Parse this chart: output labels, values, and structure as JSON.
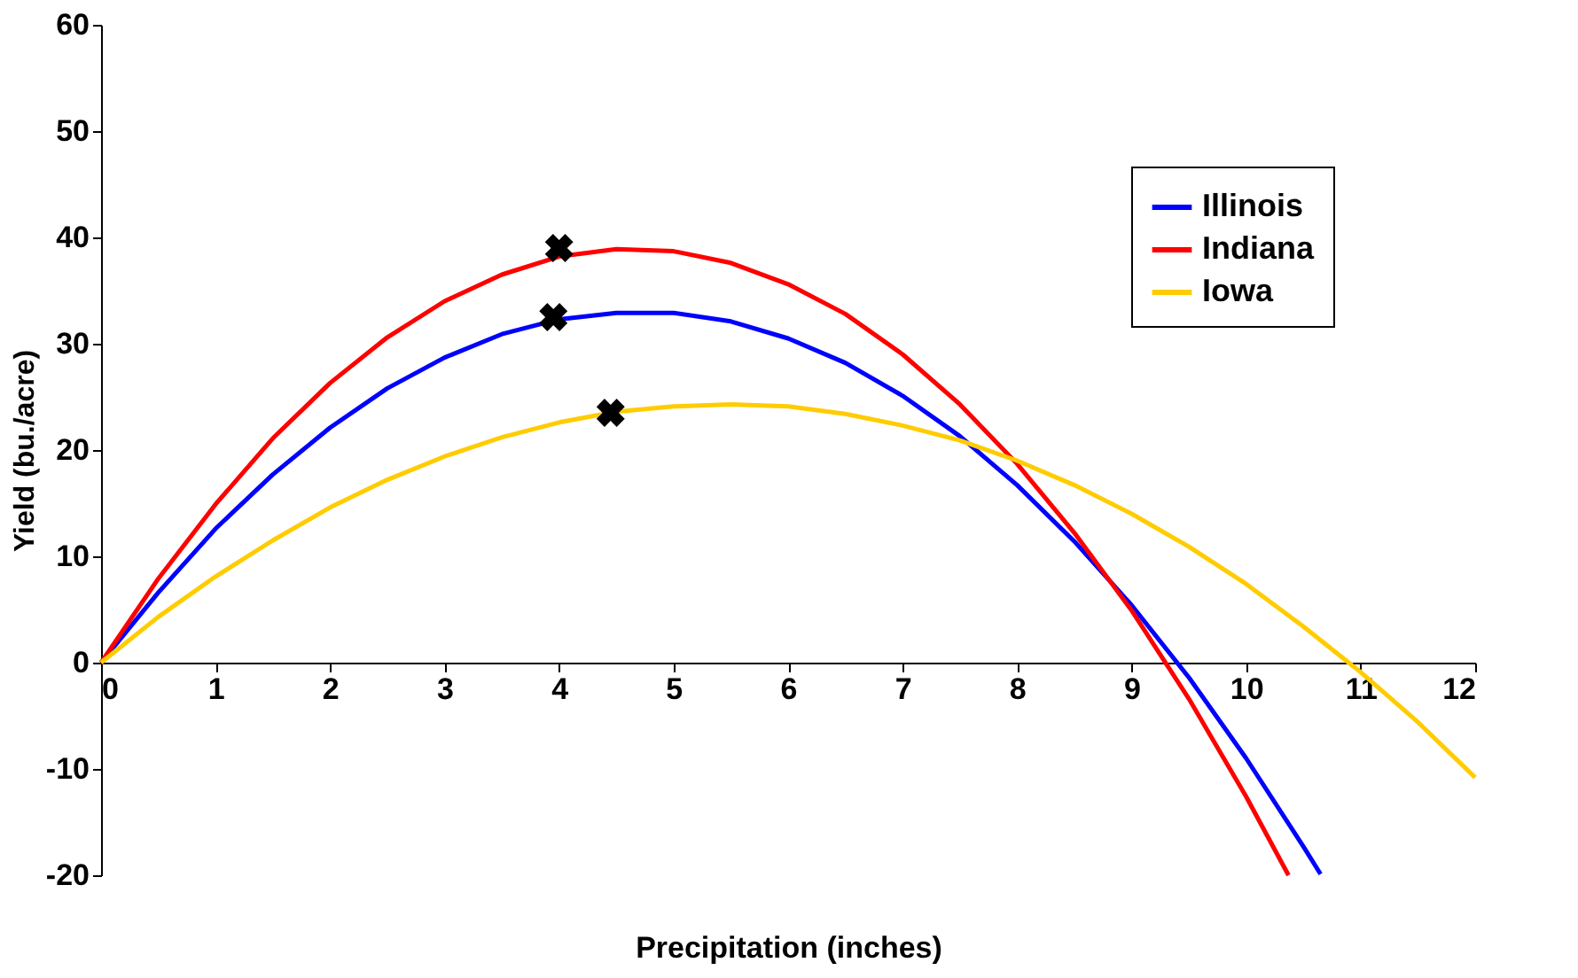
{
  "chart_data": {
    "type": "line",
    "xlabel": "Precipitation (inches)",
    "ylabel": "Yield (bu./acre)",
    "xlim": [
      0,
      12
    ],
    "xticks": [
      0,
      1,
      2,
      3,
      4,
      5,
      6,
      7,
      8,
      9,
      10,
      11,
      12
    ],
    "ylim": [
      -20,
      60
    ],
    "yticks": [
      -20,
      -10,
      0,
      10,
      20,
      30,
      40,
      50,
      60
    ],
    "grid": false,
    "legend": "top right",
    "marker": "none",
    "line_style": "solid",
    "series": [
      {
        "name": "Illinois",
        "color": "#0000ff",
        "x": [
          0,
          0.5,
          1,
          1.5,
          2,
          2.5,
          3,
          3.5,
          4,
          4.5,
          5,
          5.5,
          6,
          6.5,
          7,
          7.5,
          8,
          8.5,
          9,
          9.5,
          10,
          10.5,
          10.65
        ],
        "values": [
          0,
          6.6,
          12.6,
          17.7,
          22.1,
          25.8,
          28.7,
          30.9,
          32.3,
          32.9,
          32.9,
          32.1,
          30.5,
          28.2,
          25.1,
          21.3,
          16.7,
          11.4,
          5.4,
          -1.4,
          -9.0,
          -17.3,
          -19.9
        ]
      },
      {
        "name": "Indiana",
        "color": "#ff0000",
        "x": [
          0,
          0.5,
          1,
          1.5,
          2,
          2.5,
          3,
          3.5,
          4,
          4.5,
          5,
          5.5,
          6,
          6.5,
          7,
          7.5,
          8,
          8.5,
          9,
          9.5,
          10,
          10.37
        ],
        "values": [
          0,
          7.9,
          14.9,
          21.1,
          26.3,
          30.6,
          34.0,
          36.5,
          38.2,
          38.9,
          38.7,
          37.6,
          35.6,
          32.8,
          29.0,
          24.3,
          18.7,
          12.2,
          4.9,
          -3.4,
          -12.6,
          -20.0
        ]
      },
      {
        "name": "Iowa",
        "color": "#ffcc00",
        "x": [
          0,
          0.5,
          1,
          1.5,
          2,
          2.5,
          3,
          3.5,
          4,
          4.5,
          5,
          5.5,
          6,
          6.5,
          7,
          7.5,
          8,
          8.5,
          9,
          9.5,
          10,
          10.5,
          11,
          11.5,
          12
        ],
        "values": [
          0,
          4.3,
          8.1,
          11.5,
          14.6,
          17.2,
          19.4,
          21.2,
          22.6,
          23.6,
          24.1,
          24.3,
          24.1,
          23.4,
          22.3,
          20.9,
          19.0,
          16.7,
          14.0,
          10.9,
          7.4,
          3.4,
          -0.9,
          -5.6,
          -10.8
        ]
      },
      {
        "type": "scatter",
        "marker": "cross",
        "color": "#000000",
        "x": [
          4.0,
          3.95,
          4.45
        ],
        "values": [
          39,
          32.5,
          23.5
        ]
      }
    ]
  }
}
